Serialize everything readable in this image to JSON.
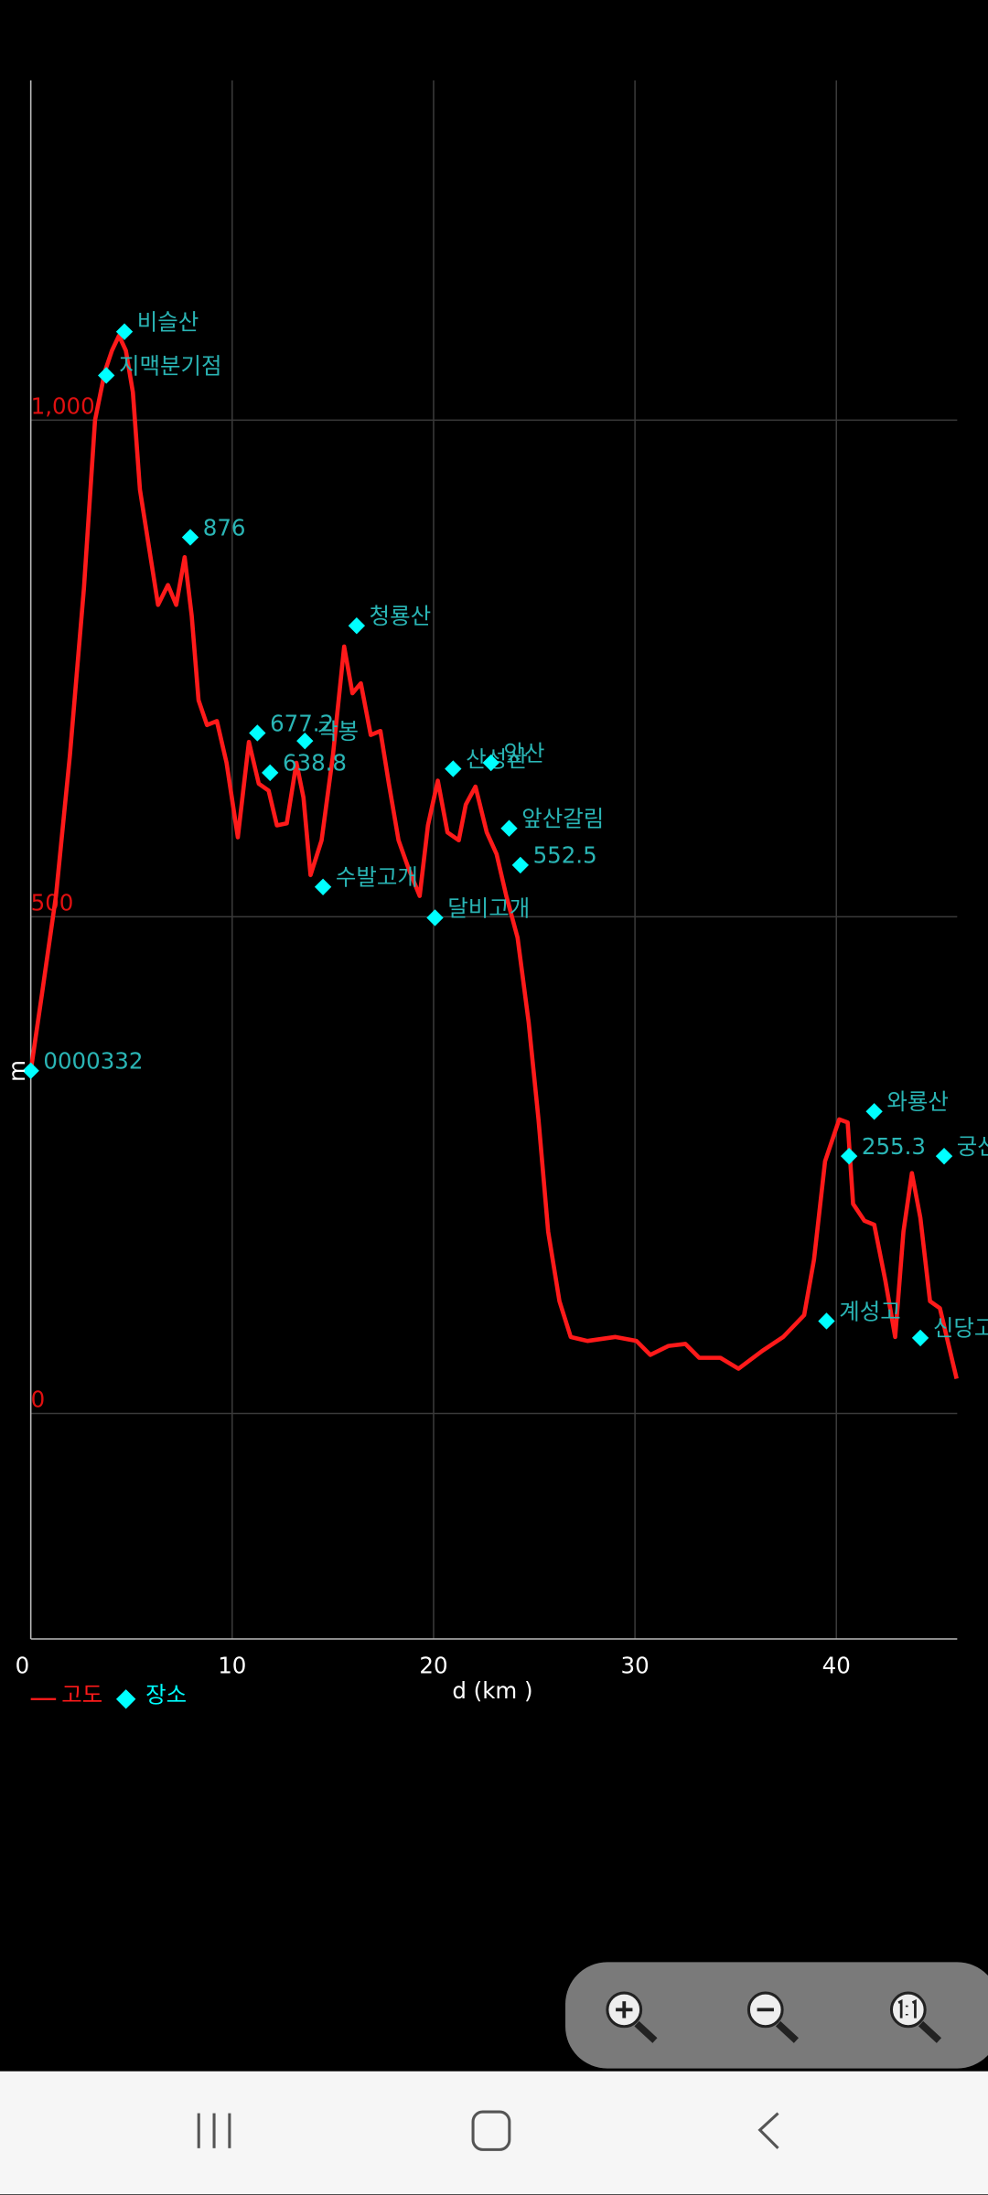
{
  "chart_data": {
    "type": "line",
    "x_label": "d (km )",
    "y_label": "m",
    "xlim": [
      0,
      46
    ],
    "ylim": [
      -227,
      1342
    ],
    "xticks": [
      0,
      10,
      20,
      30,
      40
    ],
    "yticks": [
      0,
      500,
      {
        "value": 1000,
        "label": "1,000"
      }
    ],
    "grid": true,
    "series": [
      {
        "name": "고도",
        "color": "#ff1a1a",
        "x": [
          0,
          0.56,
          1.25,
          1.94,
          2.64,
          3.19,
          3.68,
          4.03,
          4.38,
          4.72,
          5.07,
          5.42,
          5.97,
          6.32,
          6.81,
          7.22,
          7.64,
          7.99,
          8.33,
          8.75,
          9.24,
          9.72,
          10.28,
          10.83,
          11.32,
          11.81,
          12.22,
          12.71,
          13.19,
          13.54,
          13.89,
          14.44,
          15,
          15.56,
          15.97,
          16.39,
          16.88,
          17.36,
          17.78,
          18.26,
          18.75,
          19.31,
          19.72,
          20.21,
          20.69,
          21.25,
          21.6,
          22.08,
          22.64,
          23.13,
          23.61,
          24.17,
          24.72,
          25.21,
          25.69,
          26.25,
          26.81,
          27.64,
          29.03,
          30.07,
          30.76,
          31.67,
          32.5,
          33.19,
          34.24,
          35.14,
          36.32,
          37.36,
          38.4,
          38.89,
          39.44,
          40.14,
          40.56,
          40.83,
          41.39,
          41.88,
          42.43,
          42.92,
          43.33,
          43.75,
          44.17,
          44.65,
          45.14,
          45.56,
          45.97
        ],
        "values": [
          345,
          423,
          521,
          662,
          831,
          1000,
          1049,
          1070,
          1085,
          1070,
          1028,
          930,
          859,
          814,
          834,
          814,
          862,
          803,
          718,
          693,
          697,
          655,
          580,
          676,
          634,
          627,
          592,
          594,
          655,
          620,
          542,
          577,
          662,
          772,
          725,
          735,
          683,
          687,
          634,
          577,
          549,
          521,
          592,
          637,
          585,
          577,
          613,
          631,
          585,
          563,
          521,
          479,
          394,
          296,
          183,
          113,
          77,
          73,
          77,
          73,
          59,
          68,
          70,
          56,
          56,
          45,
          63,
          77,
          99,
          155,
          254,
          296,
          293,
          211,
          194,
          190,
          134,
          77,
          183,
          242,
          197,
          113,
          106,
          70,
          35
        ]
      }
    ],
    "places": {
      "name": "장소",
      "color": "#00ffff",
      "label_color": "#2ab5b5",
      "labels": [
        "비슬산",
        "지맥분기점",
        "876",
        "청룡산",
        "677.2",
        "각봉",
        "638.8",
        "수발고개",
        "달비고개",
        "산성산",
        "앞산",
        "앞산갈림",
        "552.5",
        "0000332",
        "와룡산",
        "255.3",
        "궁산",
        "계성고",
        "신당고"
      ],
      "x": [
        4.65,
        3.75,
        7.92,
        16.18,
        11.25,
        13.61,
        11.88,
        14.51,
        20.07,
        20.97,
        22.85,
        23.75,
        24.31,
        0,
        41.88,
        40.63,
        45.35,
        39.51,
        44.17
      ],
      "values": [
        1089,
        1045,
        882,
        793,
        685,
        677,
        645,
        530,
        499,
        649,
        655,
        589,
        552,
        345,
        304,
        259,
        259,
        93,
        76
      ]
    }
  }
}
